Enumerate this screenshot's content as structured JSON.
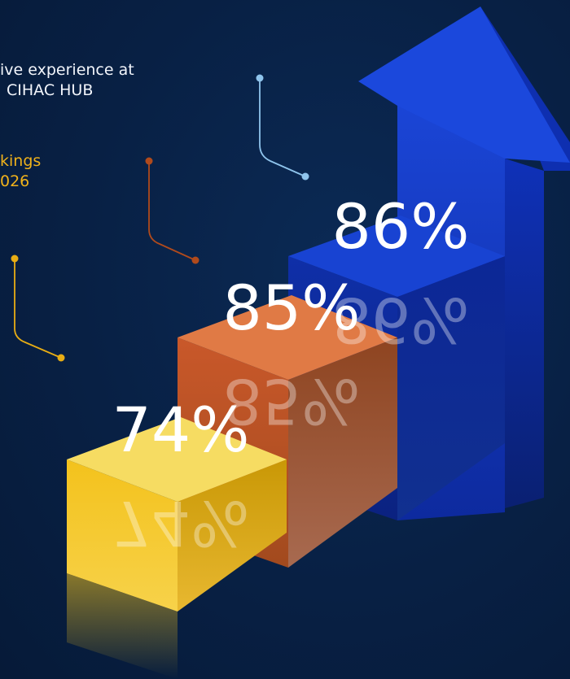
{
  "intro": {
    "line1": "ive experience at",
    "line2": "CIHAC HUB"
  },
  "subtitle": {
    "line1": "kings",
    "line2": "026"
  },
  "colors": {
    "background": "#082044",
    "yellow": "#f0b21b",
    "orange": "#d9682f",
    "blue": "#1238c8",
    "arrow": "#1a45d6"
  },
  "chart_data": {
    "type": "bar",
    "categories": [
      "",
      "",
      ""
    ],
    "values": [
      74,
      85,
      86
    ],
    "value_labels": [
      "74%",
      "85%",
      "86%"
    ],
    "bar_colors": [
      "#f0b21b",
      "#d9682f",
      "#1238c8"
    ],
    "title": "",
    "xlabel": "",
    "ylabel": "",
    "ylim": [
      0,
      100
    ],
    "grid": false,
    "legend": "none"
  }
}
